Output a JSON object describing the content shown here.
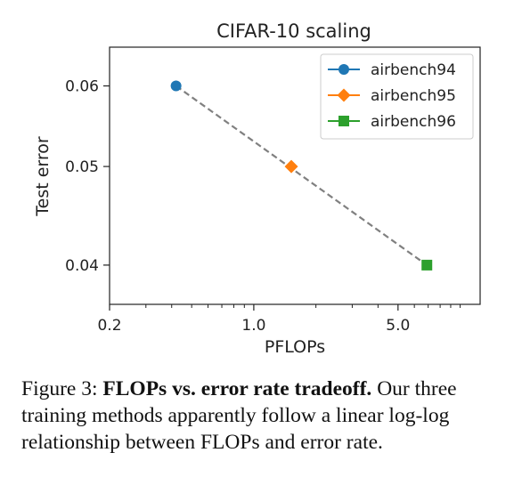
{
  "chart_data": {
    "type": "scatter",
    "title": "CIFAR-10 scaling",
    "xlabel": "PFLOPs",
    "ylabel": "Test error",
    "xscale": "log",
    "yscale": "log",
    "xlim": [
      0.2,
      12.5
    ],
    "ylim": [
      0.0366,
      0.0655
    ],
    "xticks": [
      {
        "value": 0.2,
        "label": "0.2"
      },
      {
        "value": 1.0,
        "label": "1.0"
      },
      {
        "value": 5.0,
        "label": "5.0"
      }
    ],
    "yticks": [
      {
        "value": 0.04,
        "label": "0.04"
      },
      {
        "value": 0.05,
        "label": "0.05"
      },
      {
        "value": 0.06,
        "label": "0.06"
      }
    ],
    "grid": false,
    "legend_position": "top-right",
    "fit_line": {
      "style": "dashed",
      "color": "#808080",
      "x": [
        0.42,
        6.9
      ],
      "y": [
        0.06,
        0.04
      ]
    },
    "series": [
      {
        "name": "airbench94",
        "x": [
          0.42
        ],
        "y": [
          0.06
        ],
        "color": "#1f77b4",
        "marker": "circle"
      },
      {
        "name": "airbench95",
        "x": [
          1.52
        ],
        "y": [
          0.05
        ],
        "color": "#ff7f0e",
        "marker": "diamond"
      },
      {
        "name": "airbench96",
        "x": [
          6.9
        ],
        "y": [
          0.04
        ],
        "color": "#2ca02c",
        "marker": "square"
      }
    ]
  },
  "caption": {
    "label": "Figure 3:",
    "bold": "FLOPs vs. error rate tradeoff.",
    "text": "Our three training methods apparently follow a linear log-log relationship between FLOPs and error rate."
  }
}
